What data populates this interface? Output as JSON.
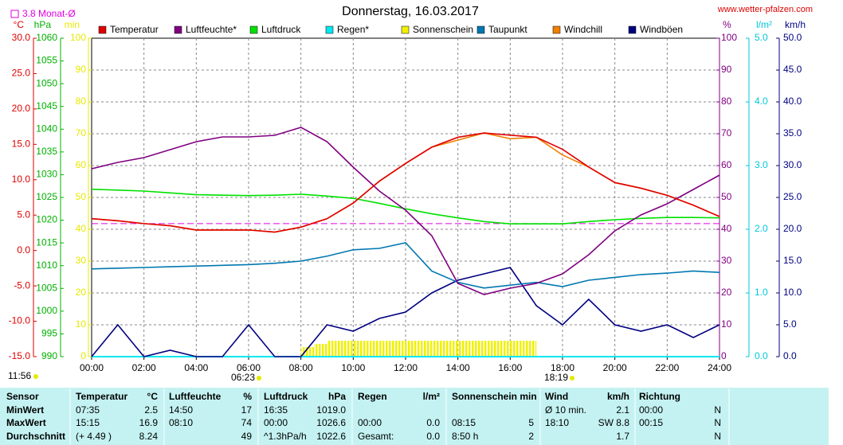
{
  "chart_data": {
    "type": "line",
    "title": "Donnerstag, 16.03.2017",
    "source": "www.wetter-pfalzen.com",
    "reference": {
      "label": "3.8 Monat-Ø",
      "value": 3.8,
      "axis": "temp",
      "color": "#e000e0"
    },
    "annotations": [
      "11:56",
      "06:23",
      "18:19"
    ],
    "xlim": [
      0,
      24
    ],
    "xticks": [
      {
        "value": 0,
        "label": "00:00"
      },
      {
        "value": 2,
        "label": "02:00"
      },
      {
        "value": 4,
        "label": "04:00"
      },
      {
        "value": 6,
        "label": "06:00"
      },
      {
        "value": 8,
        "label": "08:00"
      },
      {
        "value": 10,
        "label": "10:00"
      },
      {
        "value": 12,
        "label": "12:00"
      },
      {
        "value": 14,
        "label": "14:00"
      },
      {
        "value": 16,
        "label": "16:00"
      },
      {
        "value": 18,
        "label": "18:00"
      },
      {
        "value": 20,
        "label": "20:00"
      },
      {
        "value": 22,
        "label": "22:00"
      },
      {
        "value": 24,
        "label": "24:00"
      }
    ],
    "grid": true,
    "axes": {
      "temp": {
        "label": "°C",
        "color": "#e00000",
        "lim": [
          -15,
          30
        ],
        "ticks": [
          {
            "value": -15,
            "label": "-15.0"
          },
          {
            "value": -10,
            "label": "-10.0"
          },
          {
            "value": -5,
            "label": "-5.0"
          },
          {
            "value": 0,
            "label": "0.0"
          },
          {
            "value": 5,
            "label": "5.0"
          },
          {
            "value": 10,
            "label": "10.0"
          },
          {
            "value": 15,
            "label": "15.0"
          },
          {
            "value": 20,
            "label": "20.0"
          },
          {
            "value": 25,
            "label": "25.0"
          },
          {
            "value": 30,
            "label": "30.0"
          }
        ]
      },
      "hpa": {
        "label": "hPa",
        "color": "#00b000",
        "lim": [
          990,
          1060
        ],
        "ticks": [
          990,
          995,
          1000,
          1005,
          1010,
          1015,
          1020,
          1025,
          1030,
          1035,
          1040,
          1045,
          1050,
          1055,
          1060
        ]
      },
      "min": {
        "label": "min",
        "color": "#e8e800",
        "lim": [
          0,
          100
        ],
        "ticks": [
          0,
          10,
          20,
          30,
          40,
          50,
          60,
          70,
          80,
          90,
          100
        ]
      },
      "pct": {
        "label": "%",
        "color": "#800080",
        "lim": [
          0,
          100
        ],
        "ticks": [
          0,
          10,
          20,
          30,
          40,
          50,
          60,
          70,
          80,
          90,
          100
        ]
      },
      "rain": {
        "label": "l/m²",
        "color": "#00c8d8",
        "lim": [
          0,
          5
        ],
        "ticks": [
          {
            "value": 0,
            "label": "0.0"
          },
          {
            "value": 1,
            "label": "1.0"
          },
          {
            "value": 2,
            "label": "2.0"
          },
          {
            "value": 3,
            "label": "3.0"
          },
          {
            "value": 4,
            "label": "4.0"
          },
          {
            "value": 5,
            "label": "5.0"
          }
        ]
      },
      "wind": {
        "label": "km/h",
        "color": "#000080",
        "lim": [
          0,
          50
        ],
        "ticks": [
          {
            "value": 0,
            "label": "0.0"
          },
          {
            "value": 5,
            "label": "5.0"
          },
          {
            "value": 10,
            "label": "10.0"
          },
          {
            "value": 15,
            "label": "15.0"
          },
          {
            "value": 20,
            "label": "20.0"
          },
          {
            "value": 25,
            "label": "25.0"
          },
          {
            "value": 30,
            "label": "30.0"
          },
          {
            "value": 35,
            "label": "35.0"
          },
          {
            "value": 40,
            "label": "40.0"
          },
          {
            "value": 45,
            "label": "45.0"
          },
          {
            "value": 50,
            "label": "50.0"
          }
        ]
      }
    },
    "x": [
      0,
      1,
      2,
      3,
      4,
      5,
      6,
      7,
      8,
      9,
      10,
      11,
      12,
      13,
      14,
      15,
      16,
      17,
      18,
      19,
      20,
      21,
      22,
      23,
      24
    ],
    "series": [
      {
        "name": "Temperatur",
        "color": "#e00000",
        "axis": "temp",
        "values": [
          4.5,
          4.2,
          3.8,
          3.5,
          2.9,
          2.9,
          2.9,
          2.6,
          3.3,
          4.5,
          6.7,
          9.8,
          12.3,
          14.6,
          16,
          16.6,
          16.3,
          16,
          14.3,
          11.8,
          9.6,
          8.8,
          7.8,
          6.4,
          4.8
        ]
      },
      {
        "name": "Luftfeuchte*",
        "color": "#800080",
        "axis": "pct",
        "values": [
          59,
          61,
          62.5,
          65,
          67.5,
          69,
          69,
          69.5,
          72,
          67.5,
          59.5,
          52,
          46,
          38,
          23,
          19.5,
          21.5,
          23,
          26,
          32,
          39.5,
          44.5,
          48,
          52.5,
          57
        ]
      },
      {
        "name": "Luftdruck",
        "color": "#00e000",
        "axis": "hpa",
        "values": [
          1026.8,
          1026.6,
          1026.4,
          1026,
          1025.6,
          1025.5,
          1025.4,
          1025.5,
          1025.7,
          1025.3,
          1024.8,
          1023.7,
          1022.5,
          1021.4,
          1020.5,
          1019.7,
          1019.2,
          1019.2,
          1019.2,
          1019.7,
          1020.1,
          1020.4,
          1020.6,
          1020.6,
          1020.5
        ]
      },
      {
        "name": "Regen*",
        "color": "#00e8f0",
        "axis": "rain",
        "values": [
          0,
          0,
          0,
          0,
          0,
          0,
          0,
          0,
          0,
          0,
          0,
          0,
          0,
          0,
          0,
          0,
          0,
          0,
          0,
          0,
          0,
          0,
          0,
          0,
          0
        ]
      },
      {
        "name": "Sonnenschein",
        "color": "#f0f000",
        "axis": "min",
        "kind": "bar",
        "x": [
          8.5,
          9,
          9.5,
          10,
          10.5,
          11,
          11.5,
          12,
          12.5,
          13,
          13.5,
          14,
          14.5,
          15,
          15.5,
          16,
          16.5,
          17
        ],
        "values": [
          3,
          4,
          5,
          5,
          5,
          5,
          5,
          5,
          5,
          5,
          5,
          5,
          5,
          5,
          5,
          5,
          5,
          5
        ]
      },
      {
        "name": "Taupunkt",
        "color": "#0078b0",
        "axis": "temp",
        "values": [
          -2.6,
          -2.5,
          -2.4,
          -2.3,
          -2.2,
          -2.1,
          -2,
          -1.8,
          -1.5,
          -0.8,
          0.1,
          0.3,
          1.1,
          -2.9,
          -4.5,
          -5.3,
          -4.9,
          -4.5,
          -5.1,
          -4.2,
          -3.8,
          -3.4,
          -3.2,
          -2.9,
          -3.1
        ]
      },
      {
        "name": "Windchill",
        "color": "#f08000",
        "axis": "temp",
        "values": [
          4.5,
          4.2,
          3.8,
          3.5,
          2.9,
          2.9,
          2.9,
          2.6,
          3.3,
          4.5,
          6.7,
          9.8,
          12.3,
          14.6,
          15.6,
          16.6,
          15.8,
          16,
          13.5,
          11.8,
          9.6,
          8.8,
          7.8,
          6.4,
          4.8
        ]
      },
      {
        "name": "Windböen",
        "color": "#000080",
        "axis": "wind",
        "values": [
          0,
          5,
          0,
          1,
          0,
          0,
          5,
          0,
          0,
          5,
          4,
          6,
          7,
          10,
          12,
          13,
          14,
          8,
          5,
          9,
          5,
          4,
          5,
          3,
          5
        ]
      }
    ]
  },
  "table": {
    "header": [
      "Sensor",
      "Temperatur",
      "°C",
      "Luftfeuchte",
      "%",
      "Luftdruck",
      "hPa",
      "Regen",
      "l/m²",
      "Sonnenschein min",
      null,
      "Wind",
      "km/h",
      "Richtung",
      null
    ],
    "rows": [
      [
        "MinWert",
        "07:35",
        "2.5",
        "14:50",
        "17",
        "16:35",
        "1019.0",
        null,
        null,
        null,
        null,
        "Ø 10 min.",
        "2.1",
        "00:00",
        "N"
      ],
      [
        "MaxWert",
        "15:15",
        "16.9",
        "08:10",
        "74",
        "00:00",
        "1026.6",
        "00:00",
        "0.0",
        "08:15",
        "5",
        "18:10",
        "SW 8.8",
        "00:15",
        "N"
      ],
      [
        "Durchschnitt",
        "(+ 4.49 )",
        "8.24",
        null,
        "49",
        "^1.3hPa/h",
        "1022.6",
        "Gesamt:",
        "0.0",
        "8:50 h",
        "2",
        null,
        "1.7",
        null,
        "N"
      ]
    ]
  }
}
